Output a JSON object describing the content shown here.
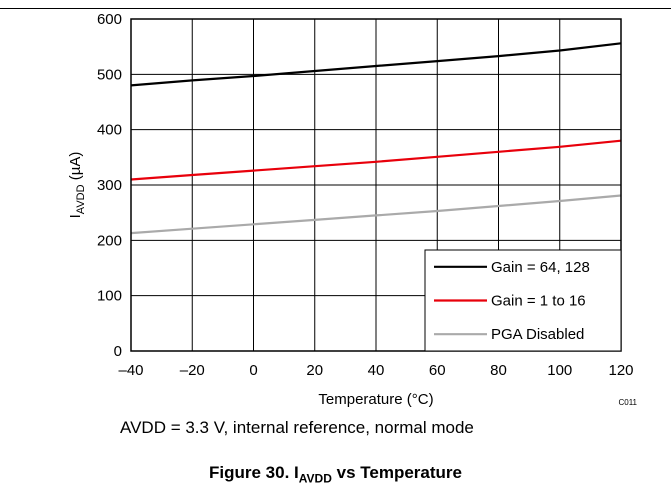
{
  "chart_data": {
    "type": "line",
    "xlabel": "Temperature (°C)",
    "ylabel": {
      "main": "I",
      "sub": "AVDD",
      "unit": " (µA)"
    },
    "xlim": [
      -40,
      120
    ],
    "ylim": [
      0,
      600
    ],
    "x_ticks": [
      "–40",
      "–20",
      "0",
      "20",
      "40",
      "60",
      "80",
      "100",
      "120"
    ],
    "y_ticks": [
      "0",
      "100",
      "200",
      "300",
      "400",
      "500",
      "600"
    ],
    "grid": true,
    "legend_placement": "bottom-right",
    "chart_code": "C011",
    "series": [
      {
        "name": "Gain = 64, 128",
        "color": "#000000",
        "x": [
          -40,
          -20,
          0,
          20,
          40,
          60,
          80,
          100,
          120
        ],
        "y": [
          480,
          489,
          497,
          506,
          515,
          524,
          533,
          543,
          556
        ]
      },
      {
        "name": "Gain = 1 to 16",
        "color": "#e8000b",
        "x": [
          -40,
          -20,
          0,
          20,
          40,
          60,
          80,
          100,
          120
        ],
        "y": [
          310,
          318,
          326,
          334,
          342,
          351,
          360,
          369,
          380
        ]
      },
      {
        "name": "PGA Disabled",
        "color": "#aaaaaa",
        "x": [
          -40,
          -20,
          0,
          20,
          40,
          60,
          80,
          100,
          120
        ],
        "y": [
          213,
          221,
          229,
          237,
          245,
          253,
          262,
          271,
          281
        ]
      }
    ]
  },
  "caption": {
    "note": "AVDD = 3.3 V, internal reference, normal mode",
    "figure_prefix": "Figure 30. I",
    "figure_sub": "AVDD",
    "figure_suffix": " vs Temperature"
  }
}
